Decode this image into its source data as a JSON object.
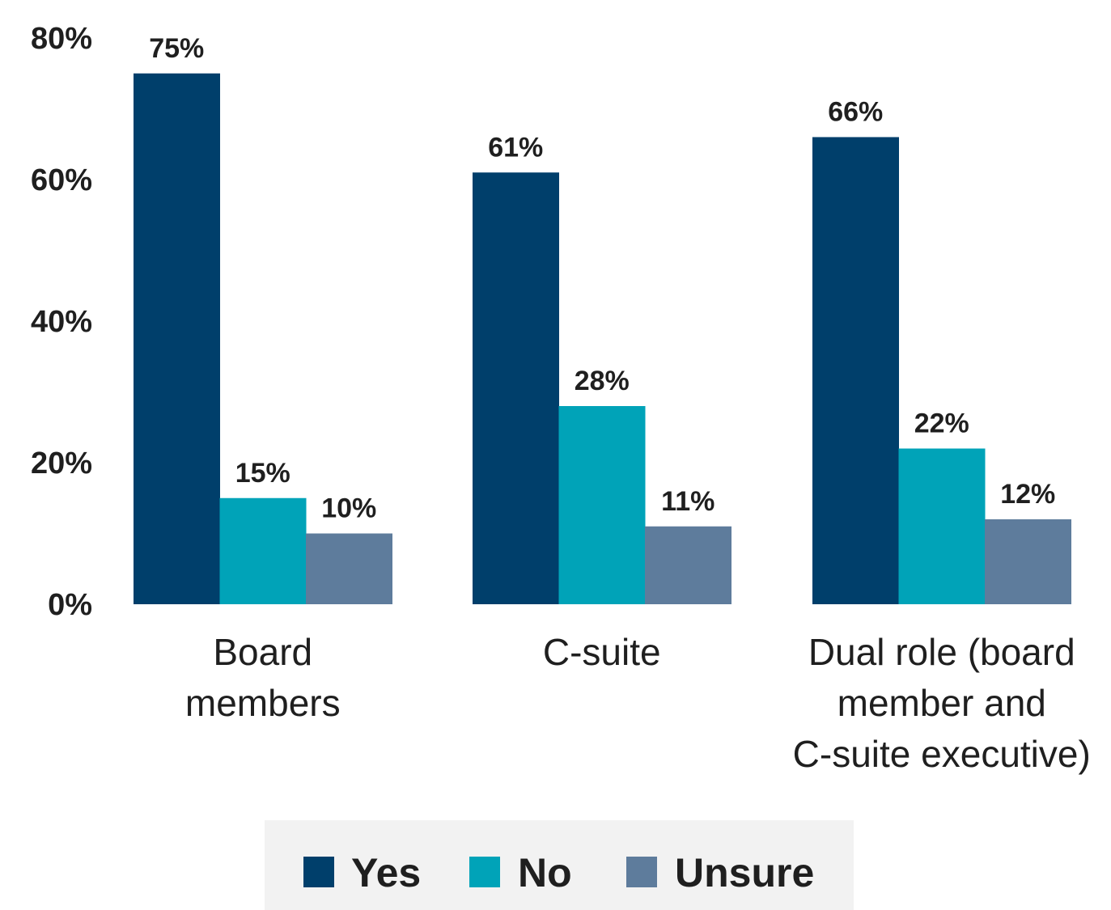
{
  "chart_data": {
    "type": "bar",
    "categories": [
      [
        "Board",
        "members"
      ],
      [
        "C-suite"
      ],
      [
        "Dual role (board",
        "member and",
        "C-suite executive)"
      ]
    ],
    "series": [
      {
        "name": "Yes",
        "color": "#003f6b",
        "values": [
          75,
          61,
          66
        ],
        "labels": [
          "75%",
          "61%",
          "66%"
        ]
      },
      {
        "name": "No",
        "color": "#00a3b8",
        "values": [
          15,
          28,
          22
        ],
        "labels": [
          "15%",
          "28%",
          "22%"
        ]
      },
      {
        "name": "Unsure",
        "color": "#5e7c9c",
        "values": [
          10,
          11,
          12
        ],
        "labels": [
          "10%",
          "11%",
          "12%"
        ]
      }
    ],
    "y_ticks": [
      0,
      20,
      40,
      60,
      80
    ],
    "y_tick_labels": [
      "0%",
      "20%",
      "40%",
      "60%",
      "80%"
    ],
    "ylim": [
      0,
      80
    ],
    "grid": false,
    "legend": {
      "position": "bottom-center",
      "background": "#f2f2f2"
    }
  }
}
